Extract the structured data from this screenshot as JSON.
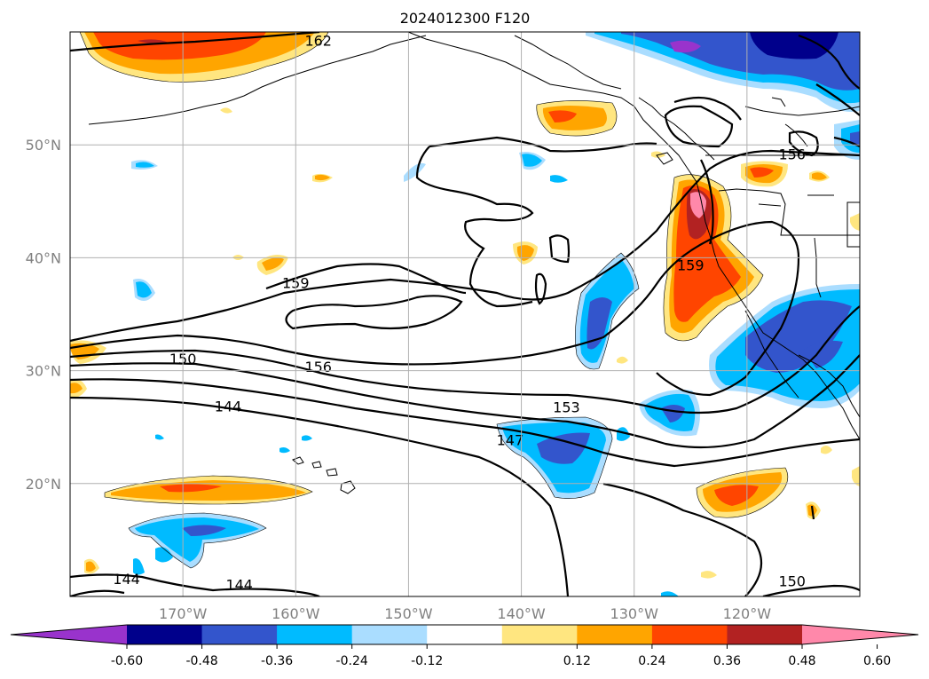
{
  "title": "2024012300 F120",
  "map": {
    "projection": "lat-lon",
    "lon_range": [
      -180,
      -110
    ],
    "lat_range": [
      10,
      60
    ],
    "lon_ticks": [
      {
        "value": -170,
        "label": "170°W"
      },
      {
        "value": -160,
        "label": "160°W"
      },
      {
        "value": -150,
        "label": "150°W"
      },
      {
        "value": -140,
        "label": "140°W"
      },
      {
        "value": -130,
        "label": "130°W"
      },
      {
        "value": -120,
        "label": "120°W"
      }
    ],
    "lat_ticks": [
      {
        "value": 20,
        "label": "20°N"
      },
      {
        "value": 30,
        "label": "30°N"
      },
      {
        "value": 40,
        "label": "40°N"
      },
      {
        "value": 50,
        "label": "50°N"
      }
    ],
    "gridlines": true,
    "contour_labels": [
      {
        "text": "162",
        "lon": -158.0,
        "lat": 58.8
      },
      {
        "text": "159",
        "lon": -160.0,
        "lat": 37.3
      },
      {
        "text": "150",
        "lon": -170.0,
        "lat": 30.6
      },
      {
        "text": "156",
        "lon": -158.0,
        "lat": 29.9
      },
      {
        "text": "144",
        "lon": -166.0,
        "lat": 26.4
      },
      {
        "text": "153",
        "lon": -136.0,
        "lat": 26.3
      },
      {
        "text": "147",
        "lon": -141.0,
        "lat": 23.4
      },
      {
        "text": "144",
        "lon": -175.0,
        "lat": 11.1
      },
      {
        "text": "144",
        "lon": -165.0,
        "lat": 10.6
      },
      {
        "text": "150",
        "lon": -116.0,
        "lat": 10.9
      },
      {
        "text": "156",
        "lon": -116.0,
        "lat": 48.7
      },
      {
        "text": "159",
        "lon": -125.0,
        "lat": 38.9
      }
    ]
  },
  "colorbar": {
    "ticks": [
      "-0.60",
      "-0.48",
      "-0.36",
      "-0.24",
      "-0.12",
      "0.12",
      "0.24",
      "0.36",
      "0.48",
      "0.60"
    ],
    "colors": [
      "#9933cc",
      "#00008b",
      "#3355cc",
      "#00bbff",
      "#aaddff",
      "#ffffff",
      "#ffe680",
      "#ffa500",
      "#ff4500",
      "#b22222",
      "#ff88aa"
    ],
    "extend": "both"
  }
}
